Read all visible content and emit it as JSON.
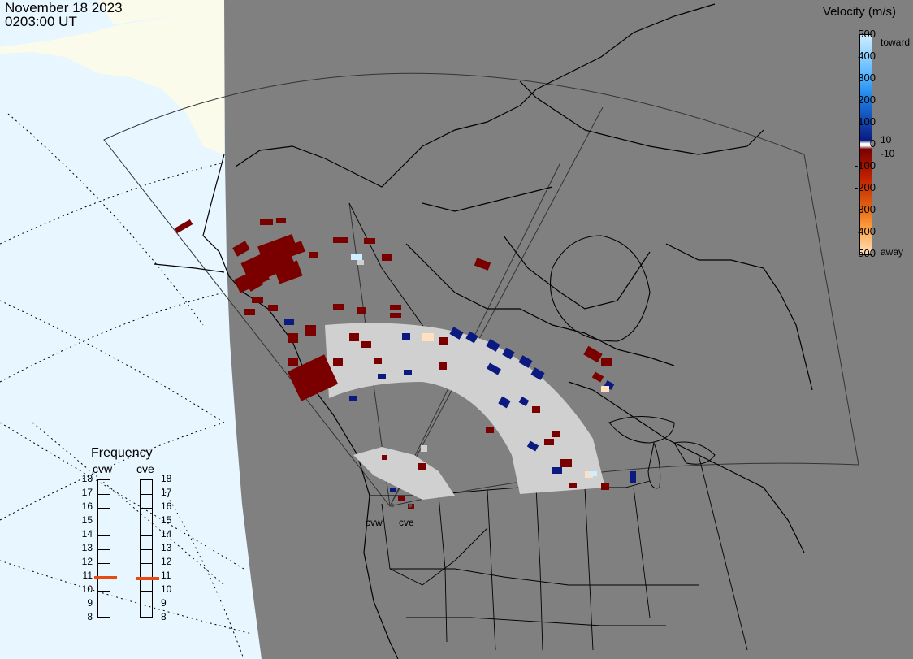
{
  "header": {
    "date": "November 18 2023",
    "time": "0203:00 UT"
  },
  "colorbar": {
    "title": "Velocity (m/s)",
    "ticks": [
      "500",
      "400",
      "300",
      "200",
      "100",
      "0",
      "-100",
      "-200",
      "-300",
      "-400",
      "-500"
    ],
    "toward_label": "toward",
    "away_label": "away",
    "plus_threshold": "10",
    "minus_threshold": "-10",
    "colors": {
      "toward_high": "#cfeeff",
      "toward_mid": "#1a78e0",
      "toward_low": "#0a1a80",
      "away_low": "#7a0000",
      "away_mid": "#e06010",
      "away_high": "#ffe0c0",
      "zero": "#ffffff"
    }
  },
  "frequency": {
    "title": "Frequency",
    "radars": [
      {
        "name": "cvw",
        "value_mhz": 10.9
      },
      {
        "name": "cve",
        "value_mhz": 10.8
      }
    ],
    "scale": [
      "18",
      "17",
      "16",
      "15",
      "14",
      "13",
      "12",
      "11",
      "10",
      "9",
      "8"
    ]
  },
  "radar_sites": [
    {
      "name": "cvw"
    },
    {
      "name": "cve"
    }
  ],
  "map_colors": {
    "ocean": "#e8f6ff",
    "land": "#fbfbec",
    "night": "#808080",
    "ground_scatter": "#d0d0d0"
  }
}
